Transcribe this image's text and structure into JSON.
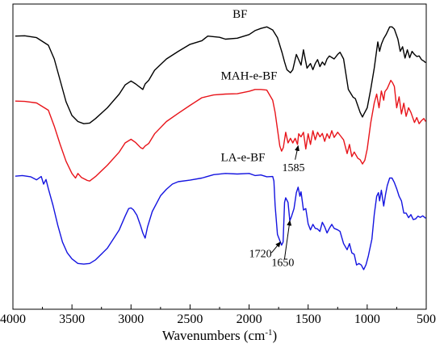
{
  "chart_data": {
    "type": "line",
    "title": "",
    "xlabel": "Wavenumbers (cm",
    "xlabel_sup": "-1",
    "xlabel_tail": ")",
    "ylabel": "",
    "xlim": [
      4000,
      500
    ],
    "ylim": [
      0,
      100
    ],
    "x_reversed": true,
    "grid": false,
    "x_ticks": [
      "4000",
      "3500",
      "3000",
      "2500",
      "2000",
      "1500",
      "1000",
      "500"
    ],
    "series": [
      {
        "name": "BF",
        "color": "#000000",
        "points": [
          [
            3980,
            89.5
          ],
          [
            3900,
            89.6
          ],
          [
            3800,
            89.0
          ],
          [
            3700,
            86.5
          ],
          [
            3650,
            82
          ],
          [
            3600,
            75
          ],
          [
            3550,
            68
          ],
          [
            3500,
            63.5
          ],
          [
            3450,
            61.5
          ],
          [
            3400,
            60.8
          ],
          [
            3350,
            61
          ],
          [
            3300,
            62.5
          ],
          [
            3200,
            66
          ],
          [
            3100,
            70.5
          ],
          [
            3050,
            73.5
          ],
          [
            3000,
            74.8
          ],
          [
            2960,
            73.8
          ],
          [
            2920,
            72.6
          ],
          [
            2900,
            72.0
          ],
          [
            2880,
            73.8
          ],
          [
            2850,
            75.0
          ],
          [
            2800,
            78.3
          ],
          [
            2700,
            82.0
          ],
          [
            2600,
            84.5
          ],
          [
            2500,
            86.8
          ],
          [
            2400,
            88.0
          ],
          [
            2350,
            89.5
          ],
          [
            2300,
            89.3
          ],
          [
            2250,
            89.1
          ],
          [
            2200,
            88.5
          ],
          [
            2100,
            88.8
          ],
          [
            2000,
            90.0
          ],
          [
            1950,
            91.3
          ],
          [
            1900,
            92.0
          ],
          [
            1850,
            92.5
          ],
          [
            1800,
            91.5
          ],
          [
            1760,
            89.0
          ],
          [
            1720,
            84
          ],
          [
            1700,
            81
          ],
          [
            1680,
            78.5
          ],
          [
            1650,
            77.5
          ],
          [
            1630,
            78.5
          ],
          [
            1600,
            83.5
          ],
          [
            1560,
            80
          ],
          [
            1540,
            85
          ],
          [
            1510,
            79
          ],
          [
            1480,
            80.5
          ],
          [
            1460,
            78.5
          ],
          [
            1440,
            80.5
          ],
          [
            1420,
            81.8
          ],
          [
            1400,
            79.5
          ],
          [
            1380,
            81
          ],
          [
            1360,
            80
          ],
          [
            1340,
            82
          ],
          [
            1320,
            83
          ],
          [
            1280,
            82.0
          ],
          [
            1250,
            83.5
          ],
          [
            1230,
            84.2
          ],
          [
            1200,
            82.0
          ],
          [
            1160,
            72.0
          ],
          [
            1120,
            69.5
          ],
          [
            1100,
            69.0
          ],
          [
            1060,
            64.5
          ],
          [
            1040,
            63
          ],
          [
            1030,
            63.8
          ],
          [
            1000,
            66
          ],
          [
            970,
            72
          ],
          [
            940,
            79
          ],
          [
            910,
            87.6
          ],
          [
            895,
            84.5
          ],
          [
            880,
            86.8
          ],
          [
            860,
            88.7
          ],
          [
            840,
            90.0
          ],
          [
            810,
            92.5
          ],
          [
            790,
            92.5
          ],
          [
            770,
            91.8
          ],
          [
            740,
            88.5
          ],
          [
            720,
            84.5
          ],
          [
            700,
            86
          ],
          [
            680,
            82.3
          ],
          [
            660,
            85.0
          ],
          [
            640,
            82.4
          ],
          [
            620,
            84.5
          ],
          [
            600,
            83.5
          ],
          [
            580,
            82.8
          ],
          [
            560,
            83.0
          ],
          [
            540,
            81.8
          ],
          [
            520,
            81.3
          ],
          [
            505,
            80.8
          ]
        ]
      },
      {
        "name": "MAH-e-BF",
        "color": "#e8141a",
        "points": [
          [
            3980,
            68.2
          ],
          [
            3900,
            68.1
          ],
          [
            3800,
            67.6
          ],
          [
            3700,
            65.2
          ],
          [
            3650,
            60
          ],
          [
            3600,
            54
          ],
          [
            3550,
            48.5
          ],
          [
            3500,
            44.5
          ],
          [
            3470,
            43.0
          ],
          [
            3450,
            44.5
          ],
          [
            3420,
            43.2
          ],
          [
            3400,
            42.8
          ],
          [
            3370,
            42.2
          ],
          [
            3350,
            42.0
          ],
          [
            3300,
            43.5
          ],
          [
            3200,
            47.2
          ],
          [
            3100,
            51.5
          ],
          [
            3050,
            54.5
          ],
          [
            3000,
            55.7
          ],
          [
            2960,
            54.6
          ],
          [
            2920,
            53.0
          ],
          [
            2900,
            52.6
          ],
          [
            2880,
            53.5
          ],
          [
            2850,
            54.3
          ],
          [
            2800,
            57.5
          ],
          [
            2700,
            61.5
          ],
          [
            2600,
            64.2
          ],
          [
            2500,
            66.8
          ],
          [
            2400,
            69.3
          ],
          [
            2300,
            70.2
          ],
          [
            2200,
            70.5
          ],
          [
            2100,
            70.6
          ],
          [
            2000,
            71.4
          ],
          [
            1950,
            72.0
          ],
          [
            1900,
            72.0
          ],
          [
            1850,
            71.8
          ],
          [
            1800,
            68.5
          ],
          [
            1780,
            64.5
          ],
          [
            1760,
            59.0
          ],
          [
            1740,
            53.5
          ],
          [
            1725,
            51.8
          ],
          [
            1710,
            53.0
          ],
          [
            1690,
            58.0
          ],
          [
            1670,
            54.5
          ],
          [
            1650,
            56.0
          ],
          [
            1630,
            54.5
          ],
          [
            1610,
            56.0
          ],
          [
            1590,
            54.0
          ],
          [
            1580,
            57.5
          ],
          [
            1560,
            56.5
          ],
          [
            1540,
            58.0
          ],
          [
            1520,
            52.5
          ],
          [
            1500,
            57.5
          ],
          [
            1480,
            54.0
          ],
          [
            1460,
            58.5
          ],
          [
            1440,
            55.5
          ],
          [
            1420,
            58.0
          ],
          [
            1400,
            56.5
          ],
          [
            1380,
            57.6
          ],
          [
            1360,
            55.0
          ],
          [
            1340,
            57.5
          ],
          [
            1320,
            56.0
          ],
          [
            1300,
            58.5
          ],
          [
            1280,
            56.3
          ],
          [
            1250,
            58.0
          ],
          [
            1230,
            57.0
          ],
          [
            1200,
            55.5
          ],
          [
            1170,
            51.0
          ],
          [
            1150,
            54.0
          ],
          [
            1130,
            50.0
          ],
          [
            1110,
            51.5
          ],
          [
            1080,
            49.5
          ],
          [
            1060,
            49.0
          ],
          [
            1040,
            47.6
          ],
          [
            1020,
            48.8
          ],
          [
            1000,
            52.5
          ],
          [
            970,
            61
          ],
          [
            940,
            67.6
          ],
          [
            920,
            70.5
          ],
          [
            900,
            66
          ],
          [
            880,
            71.5
          ],
          [
            860,
            68.5
          ],
          [
            850,
            71.3
          ],
          [
            830,
            72.3
          ],
          [
            800,
            75.0
          ],
          [
            785,
            74.2
          ],
          [
            770,
            73.0
          ],
          [
            750,
            66
          ],
          [
            730,
            69.6
          ],
          [
            710,
            64
          ],
          [
            690,
            67.5
          ],
          [
            670,
            63.2
          ],
          [
            650,
            66.0
          ],
          [
            630,
            64.5
          ],
          [
            600,
            61.2
          ],
          [
            580,
            62.8
          ],
          [
            560,
            60.8
          ],
          [
            540,
            61.8
          ],
          [
            520,
            62.5
          ],
          [
            505,
            61.5
          ]
        ]
      },
      {
        "name": "LA-e-BF",
        "color": "#1414e0",
        "points": [
          [
            3980,
            43.6
          ],
          [
            3920,
            43.8
          ],
          [
            3850,
            43.4
          ],
          [
            3800,
            42.4
          ],
          [
            3760,
            43.5
          ],
          [
            3740,
            41.0
          ],
          [
            3720,
            42.5
          ],
          [
            3700,
            39.5
          ],
          [
            3660,
            34
          ],
          [
            3620,
            27.5
          ],
          [
            3580,
            22
          ],
          [
            3540,
            18.5
          ],
          [
            3500,
            16.5
          ],
          [
            3450,
            15.0
          ],
          [
            3400,
            14.8
          ],
          [
            3350,
            15.0
          ],
          [
            3300,
            16.2
          ],
          [
            3200,
            20.0
          ],
          [
            3100,
            26.0
          ],
          [
            3050,
            30.5
          ],
          [
            3020,
            33.0
          ],
          [
            3000,
            33.2
          ],
          [
            2980,
            32.6
          ],
          [
            2950,
            30.8
          ],
          [
            2920,
            27.5
          ],
          [
            2900,
            25.0
          ],
          [
            2880,
            23.3
          ],
          [
            2860,
            27.0
          ],
          [
            2820,
            32.0
          ],
          [
            2750,
            37.2
          ],
          [
            2700,
            39.3
          ],
          [
            2650,
            41.0
          ],
          [
            2600,
            41.8
          ],
          [
            2500,
            42.3
          ],
          [
            2400,
            43.0
          ],
          [
            2300,
            44.1
          ],
          [
            2200,
            44.5
          ],
          [
            2100,
            44.3
          ],
          [
            2000,
            44.5
          ],
          [
            1950,
            43.8
          ],
          [
            1900,
            44.0
          ],
          [
            1850,
            43.4
          ],
          [
            1800,
            43.5
          ],
          [
            1790,
            42.0
          ],
          [
            1780,
            34
          ],
          [
            1760,
            24.5
          ],
          [
            1740,
            22.5
          ],
          [
            1725,
            21.0
          ],
          [
            1712,
            22.0
          ],
          [
            1700,
            35.0
          ],
          [
            1690,
            36.5
          ],
          [
            1670,
            35.0
          ],
          [
            1655,
            29.0
          ],
          [
            1640,
            30.5
          ],
          [
            1620,
            33.0
          ],
          [
            1600,
            38.2
          ],
          [
            1585,
            40.0
          ],
          [
            1570,
            37.0
          ],
          [
            1560,
            38.5
          ],
          [
            1540,
            32.5
          ],
          [
            1520,
            33.0
          ],
          [
            1500,
            28.0
          ],
          [
            1480,
            26.0
          ],
          [
            1460,
            27.8
          ],
          [
            1440,
            26.5
          ],
          [
            1420,
            26.3
          ],
          [
            1400,
            25.5
          ],
          [
            1380,
            28.5
          ],
          [
            1360,
            27.0
          ],
          [
            1340,
            25.0
          ],
          [
            1320,
            26.5
          ],
          [
            1300,
            27.8
          ],
          [
            1280,
            26.5
          ],
          [
            1250,
            26.0
          ],
          [
            1230,
            25.5
          ],
          [
            1200,
            21.5
          ],
          [
            1170,
            19.5
          ],
          [
            1150,
            21.5
          ],
          [
            1130,
            18.5
          ],
          [
            1110,
            18.0
          ],
          [
            1090,
            14.5
          ],
          [
            1070,
            15.0
          ],
          [
            1050,
            14.5
          ],
          [
            1030,
            13.0
          ],
          [
            1010,
            14.6
          ],
          [
            990,
            17.5
          ],
          [
            960,
            23.0
          ],
          [
            940,
            31.0
          ],
          [
            920,
            37.0
          ],
          [
            905,
            38.2
          ],
          [
            895,
            35.5
          ],
          [
            880,
            39.0
          ],
          [
            860,
            33.8
          ],
          [
            845,
            37.5
          ],
          [
            830,
            40.5
          ],
          [
            810,
            43.0
          ],
          [
            790,
            43.0
          ],
          [
            770,
            41.5
          ],
          [
            750,
            39.5
          ],
          [
            730,
            37.0
          ],
          [
            710,
            35.5
          ],
          [
            690,
            31.5
          ],
          [
            670,
            31.5
          ],
          [
            650,
            30.0
          ],
          [
            630,
            31.0
          ],
          [
            610,
            29.4
          ],
          [
            590,
            29.6
          ],
          [
            570,
            30.5
          ],
          [
            550,
            30.1
          ],
          [
            530,
            30.6
          ],
          [
            510,
            30.0
          ],
          [
            505,
            29.8
          ]
        ]
      }
    ],
    "series_labels": [
      {
        "text": "BF",
        "x": 2140,
        "y": 95.5
      },
      {
        "text": "MAH-e-BF",
        "x": 2240,
        "y": 75.3
      },
      {
        "text": "LA-e-BF",
        "x": 2240,
        "y": 48.6
      }
    ],
    "annotations": [
      {
        "text": "1585",
        "x": 1720,
        "y": 45.2,
        "arrow_to": [
          1585,
          53.5
        ],
        "arrow_from": [
          1610,
          49.0
        ]
      },
      {
        "text": "1720",
        "x": 2000,
        "y": 17.0,
        "arrow_to": [
          1735,
          22.0
        ],
        "arrow_from": [
          1810,
          18.5
        ]
      },
      {
        "text": "1650",
        "x": 1810,
        "y": 14.2,
        "arrow_to": [
          1655,
          29.0
        ],
        "arrow_from": [
          1700,
          16.5
        ]
      }
    ]
  }
}
